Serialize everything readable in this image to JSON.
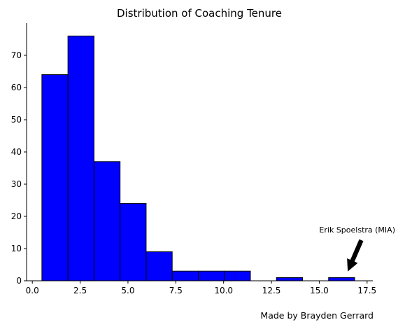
{
  "chart_data": {
    "type": "bar",
    "title": "Distribution of Coaching Tenure",
    "xlabel": "",
    "ylabel": "",
    "bin_edges": [
      0.5,
      1.8625,
      3.225,
      4.5875,
      5.95,
      7.3125,
      8.675,
      10.0375,
      11.4,
      12.7625,
      14.125,
      15.4875,
      16.85
    ],
    "values": [
      64,
      76,
      37,
      24,
      9,
      3,
      3,
      3,
      0,
      1,
      0,
      1
    ],
    "xlim": [
      -0.3,
      17.8
    ],
    "ylim": [
      0,
      80
    ],
    "xticks": [
      0.0,
      2.5,
      5.0,
      7.5,
      10.0,
      12.5,
      15.0,
      17.5
    ],
    "xtick_labels": [
      "0.0",
      "2.5",
      "5.0",
      "7.5",
      "10.0",
      "12.5",
      "15.0",
      "17.5"
    ],
    "yticks": [
      0,
      10,
      20,
      30,
      40,
      50,
      60,
      70
    ],
    "ytick_labels": [
      "0",
      "10",
      "20",
      "30",
      "40",
      "50",
      "60",
      "70"
    ],
    "bar_color": "#0000ff",
    "edge_color": "#000000",
    "grid": false,
    "annotation": {
      "text": "Erik Spoelstra (MIA)",
      "point": [
        16.5,
        3
      ],
      "text_pos": [
        15.0,
        15
      ]
    },
    "credit": "Made by Brayden Gerrard"
  }
}
